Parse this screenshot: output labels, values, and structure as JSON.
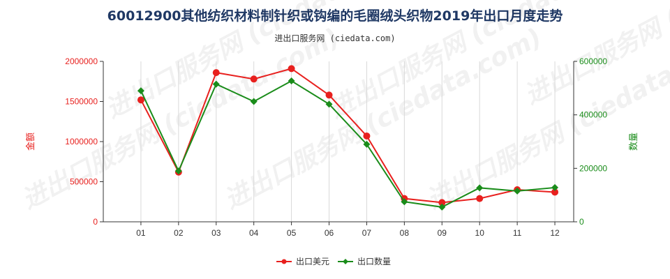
{
  "title": "60012900其他纺织材料制针织或钩编的毛圈绒头织物2019年出口月度走势",
  "subtitle": "进出口服务网 (ciedata.com)",
  "watermark": "进出口服务网 (ciedata.com)",
  "colors": {
    "left_series": "#e8201e",
    "right_series": "#1a8c1a",
    "axis": "#333333"
  },
  "chart_data": {
    "type": "line",
    "categories": [
      "01",
      "02",
      "03",
      "04",
      "05",
      "06",
      "07",
      "08",
      "09",
      "10",
      "11",
      "12"
    ],
    "y_left": {
      "label": "金额",
      "ylim": [
        0,
        2000000
      ],
      "ticks": [
        "0",
        "500000",
        "1000000",
        "1500000",
        "2000000"
      ]
    },
    "y_right": {
      "label": "数量",
      "ylim": [
        0,
        600000
      ],
      "ticks": [
        "0",
        "200000",
        "400000",
        "600000"
      ]
    },
    "series": [
      {
        "name": "出口美元",
        "axis": "left",
        "color": "#e8201e",
        "values": [
          1520000,
          620000,
          1860000,
          1780000,
          1910000,
          1580000,
          1070000,
          290000,
          240000,
          290000,
          400000,
          370000
        ]
      },
      {
        "name": "出口数量",
        "axis": "right",
        "color": "#1a8c1a",
        "values": [
          490000,
          190000,
          515000,
          450000,
          527000,
          440000,
          290000,
          75000,
          55000,
          127000,
          115000,
          128000
        ]
      }
    ],
    "legend_position": "bottom-center",
    "grid": "vertical"
  }
}
